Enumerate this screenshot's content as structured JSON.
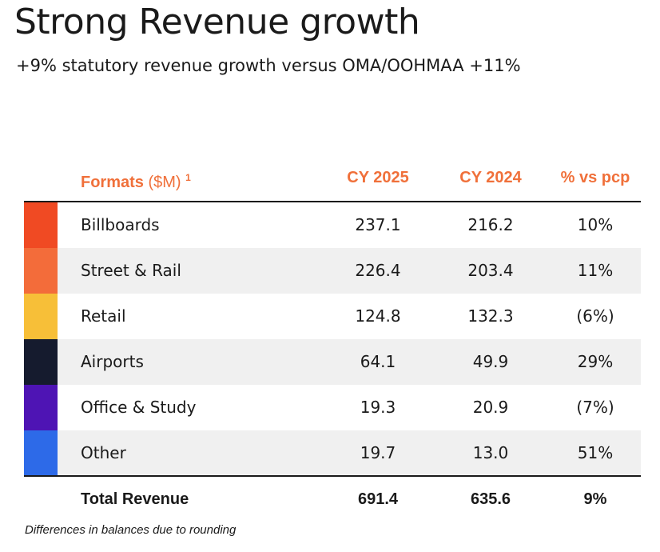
{
  "title": "Strong Revenue growth",
  "subtitle": "+9% statutory revenue growth versus OMA/OOHMAA +11%",
  "table": {
    "headers": {
      "formats": "Formats",
      "unit": "($M)",
      "footnote_ref": "1",
      "cy2025": "CY 2025",
      "cy2024": "CY 2024",
      "pct": "% vs pcp"
    },
    "rows": [
      {
        "label": "Billboards",
        "cy2025": "237.1",
        "cy2024": "216.2",
        "pct": "10%",
        "color": "#f04a23"
      },
      {
        "label": "Street & Rail",
        "cy2025": "226.4",
        "cy2024": "203.4",
        "pct": "11%",
        "color": "#f36c3a"
      },
      {
        "label": "Retail",
        "cy2025": "124.8",
        "cy2024": "132.3",
        "pct": "(6%)",
        "color": "#f7bf38"
      },
      {
        "label": "Airports",
        "cy2025": "64.1",
        "cy2024": "49.9",
        "pct": "29%",
        "color": "#151b2e"
      },
      {
        "label": "Office & Study",
        "cy2025": "19.3",
        "cy2024": "20.9",
        "pct": "(7%)",
        "color": "#4e14b4"
      },
      {
        "label": "Other",
        "cy2025": "19.7",
        "cy2024": "13.0",
        "pct": "51%",
        "color": "#2d6ae8"
      }
    ],
    "total": {
      "label": "Total Revenue",
      "cy2025": "691.4",
      "cy2024": "635.6",
      "pct": "9%"
    }
  },
  "footnote": "Differences in balances due to rounding"
}
